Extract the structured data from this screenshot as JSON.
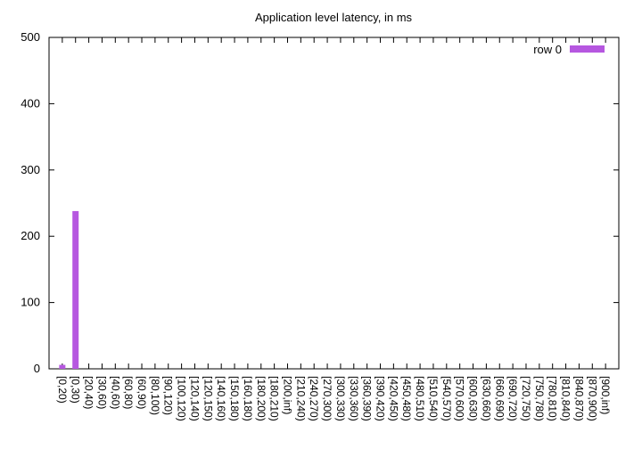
{
  "chart_data": {
    "type": "bar",
    "title": "Application level latency, in ms",
    "xlabel": "",
    "ylabel": "",
    "ylim": [
      0,
      500
    ],
    "yticks": [
      0,
      100,
      200,
      300,
      400,
      500
    ],
    "grid": false,
    "legend_position": "top-right",
    "bar_color": "#b657e0",
    "categories": [
      "[0,20)",
      "[0,30)",
      "[20,40)",
      "[30,60)",
      "[40,60)",
      "[60,80)",
      "[60,90)",
      "[80,100)",
      "[90,120)",
      "[100,120)",
      "[120,140)",
      "[120,150)",
      "[140,160)",
      "[150,180)",
      "[160,180)",
      "[180,200)",
      "[180,210)",
      "[200,inf)",
      "[210,240)",
      "[240,270)",
      "[270,300)",
      "[300,330)",
      "[330,360)",
      "[360,390)",
      "[390,420)",
      "[420,450)",
      "[450,480)",
      "[480,510)",
      "[510,540)",
      "[540,570)",
      "[570,600)",
      "[600,630)",
      "[630,660)",
      "[660,690)",
      "[690,720)",
      "[720,750)",
      "[750,780)",
      "[780,810)",
      "[810,840)",
      "[840,870)",
      "[870,900)",
      "[900,inf)"
    ],
    "series": [
      {
        "name": "row 0",
        "values": [
          6,
          238,
          0,
          0,
          0,
          0,
          0,
          0,
          0,
          0,
          0,
          0,
          0,
          0,
          0,
          0,
          0,
          0,
          0,
          0,
          0,
          0,
          0,
          0,
          0,
          0,
          0,
          0,
          0,
          0,
          0,
          0,
          0,
          0,
          0,
          0,
          0,
          0,
          0,
          0,
          0,
          0
        ]
      }
    ]
  }
}
